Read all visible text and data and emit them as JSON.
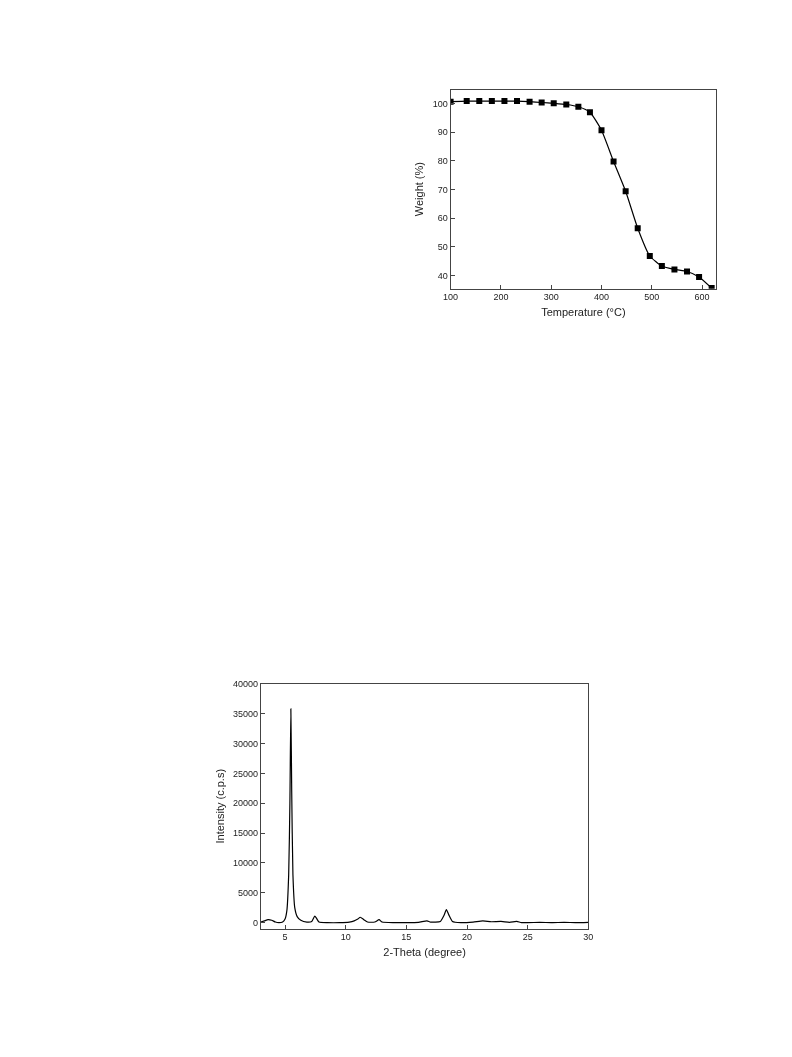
{
  "chart_data": [
    {
      "type": "line",
      "xlabel": "Temperature (°C)",
      "ylabel": "Weight (%)",
      "marker": "square",
      "xlim": [
        100,
        628
      ],
      "ylim": [
        35.4,
        104.9
      ],
      "xticks": [
        100,
        200,
        300,
        400,
        500,
        600
      ],
      "yticks": [
        40,
        50,
        60,
        70,
        80,
        90,
        100
      ],
      "series": [
        {
          "color": "#000000",
          "x": [
            100,
            132,
            157,
            182,
            207,
            232,
            257,
            281,
            305,
            330,
            354,
            377,
            400,
            424,
            448,
            472,
            496,
            520,
            545,
            570,
            594,
            619
          ],
          "values": [
            100.7,
            100.9,
            100.9,
            100.9,
            100.9,
            100.9,
            100.7,
            100.4,
            100.1,
            99.7,
            98.9,
            97,
            90.7,
            79.8,
            69.4,
            56.5,
            46.8,
            43.3,
            42.1,
            41.4,
            39.5,
            35.6
          ]
        }
      ]
    },
    {
      "type": "line",
      "xlabel": "2-Theta (degree)",
      "ylabel": "Intensity (c.p.s)",
      "xlim": [
        3,
        30
      ],
      "ylim": [
        -1000,
        40000
      ],
      "xticks": [
        5,
        10,
        15,
        20,
        25,
        30
      ],
      "yticks": [
        0,
        5000,
        10000,
        15000,
        20000,
        25000,
        30000,
        35000,
        40000
      ],
      "series": [
        {
          "color": "#000000",
          "x": [
            3,
            3.3,
            3.6,
            3.9,
            4.2,
            4.5,
            4.8,
            5.0,
            5.15,
            5.3,
            5.4,
            5.48,
            5.55,
            5.65,
            5.8,
            6.0,
            6.3,
            6.8,
            7.2,
            7.45,
            7.6,
            7.8,
            8.5,
            9.5,
            10.3,
            10.7,
            11.0,
            11.2,
            11.5,
            11.8,
            12.4,
            12.75,
            13.0,
            14,
            15,
            16,
            16.7,
            17.0,
            17.8,
            18.1,
            18.3,
            18.5,
            18.8,
            19.5,
            20.5,
            21.3,
            22,
            22.8,
            23.5,
            24.1,
            24.5,
            26,
            27,
            28,
            29,
            30
          ],
          "values": [
            100,
            300,
            500,
            400,
            100,
            0,
            100,
            600,
            2000,
            8000,
            20000,
            35800,
            22000,
            8000,
            2500,
            1000,
            400,
            100,
            200,
            1100,
            700,
            100,
            0,
            0,
            100,
            300,
            600,
            900,
            500,
            100,
            100,
            500,
            100,
            0,
            0,
            50,
            300,
            100,
            200,
            1200,
            2200,
            1300,
            200,
            0,
            100,
            300,
            150,
            200,
            50,
            200,
            0,
            50,
            0,
            50,
            0,
            50
          ]
        }
      ]
    }
  ]
}
